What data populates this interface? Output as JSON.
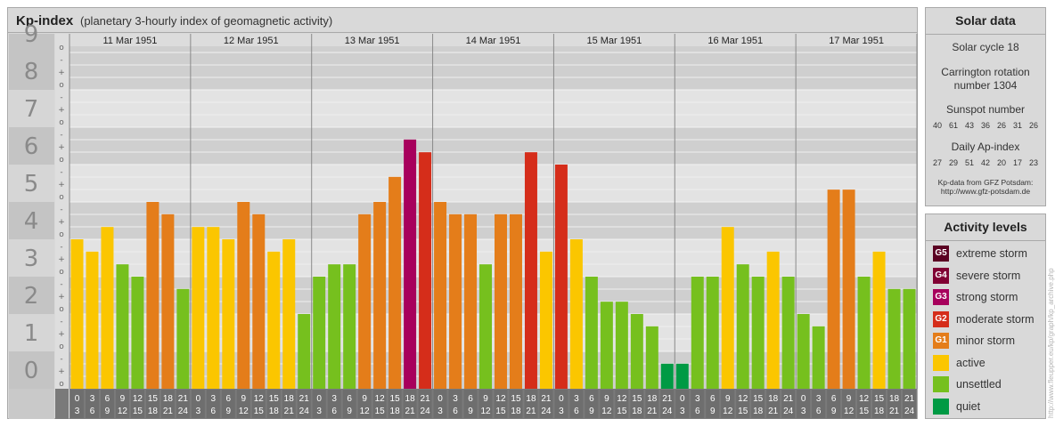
{
  "header": {
    "title": "Kp-index",
    "subtitle": "(planetary 3-hourly index of geomagnetic activity)"
  },
  "chart_data": {
    "type": "bar",
    "title": "Kp-index",
    "subtitle": "(planetary 3-hourly index of geomagnetic activity)",
    "ylim": [
      0,
      9
    ],
    "y_ticks": [
      "0",
      "1",
      "2",
      "3",
      "4",
      "5",
      "6",
      "7",
      "8",
      "9"
    ],
    "thirds_labels": [
      "+",
      "o",
      "-"
    ],
    "days": [
      "11 Mar 1951",
      "12 Mar 1951",
      "13 Mar 1951",
      "14 Mar 1951",
      "15 Mar 1951",
      "16 Mar 1951",
      "17 Mar 1951"
    ],
    "interval_labels": [
      [
        "0",
        "3"
      ],
      [
        "3",
        "6"
      ],
      [
        "6",
        "9"
      ],
      [
        "9",
        "12"
      ],
      [
        "12",
        "15"
      ],
      [
        "15",
        "18"
      ],
      [
        "18",
        "21"
      ],
      [
        "21",
        "24"
      ]
    ],
    "values": [
      [
        4.0,
        3.67,
        4.33,
        3.33,
        3.0,
        5.0,
        4.67,
        2.67
      ],
      [
        4.33,
        4.33,
        4.0,
        5.0,
        4.67,
        3.67,
        4.0,
        2.0
      ],
      [
        3.0,
        3.33,
        3.33,
        4.67,
        5.0,
        5.67,
        6.67,
        6.33
      ],
      [
        5.0,
        4.67,
        4.67,
        3.33,
        4.67,
        4.67,
        6.33,
        3.67
      ],
      [
        6.0,
        4.0,
        3.0,
        2.33,
        2.33,
        2.0,
        1.67,
        0.67
      ],
      [
        0.67,
        3.0,
        3.0,
        4.33,
        3.33,
        3.0,
        3.67,
        3.0
      ],
      [
        2.0,
        1.67,
        5.33,
        5.33,
        3.0,
        3.67,
        2.67,
        2.67
      ]
    ],
    "colors": {
      "quiet": "#009a44",
      "unsettled": "#76c01e",
      "active": "#fbc600",
      "G1": "#e47d1a",
      "G2": "#d52d1a",
      "G3": "#a7005c",
      "G4": "#800033",
      "G5": "#5a0022"
    }
  },
  "solar_data": {
    "title": "Solar data",
    "solar_cycle": "Solar cycle 18",
    "carrington": "Carrington rotation number 1304",
    "sunspot_label": "Sunspot number",
    "sunspot_values": [
      "40",
      "61",
      "43",
      "36",
      "26",
      "31",
      "26"
    ],
    "ap_label": "Daily Ap-index",
    "ap_values": [
      "27",
      "29",
      "51",
      "42",
      "20",
      "17",
      "23"
    ],
    "credit_line1": "Kp-data from GFZ Potsdam:",
    "credit_line2": "http://www.gfz-potsdam.de"
  },
  "activity_levels": {
    "title": "Activity levels",
    "items": [
      {
        "badge": "G5",
        "label": "extreme storm",
        "color": "#5a0022"
      },
      {
        "badge": "G4",
        "label": "severe storm",
        "color": "#800033"
      },
      {
        "badge": "G3",
        "label": "strong storm",
        "color": "#a7005c"
      },
      {
        "badge": "G2",
        "label": "moderate storm",
        "color": "#d52d1a"
      },
      {
        "badge": "G1",
        "label": "minor storm",
        "color": "#e47d1a"
      },
      {
        "badge": "",
        "label": "active",
        "color": "#fbc600"
      },
      {
        "badge": "",
        "label": "unsettled",
        "color": "#76c01e"
      },
      {
        "badge": "",
        "label": "quiet",
        "color": "#009a44"
      }
    ]
  },
  "watermark": "http://www.fleupper.eu/kp/graph/kp_archive.php"
}
